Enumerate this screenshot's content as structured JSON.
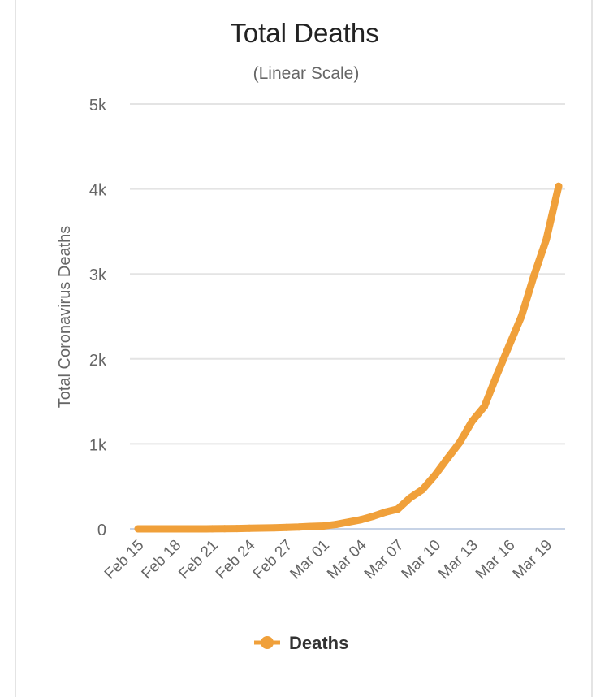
{
  "chart_data": {
    "type": "line",
    "title": "Total Deaths",
    "subtitle": "(Linear Scale)",
    "xlabel": "",
    "ylabel": "Total Coronavirus Deaths",
    "ylim": [
      0,
      5000
    ],
    "y_ticks": [
      0,
      1000,
      2000,
      3000,
      4000,
      5000
    ],
    "y_tick_labels": [
      "0",
      "1k",
      "2k",
      "3k",
      "4k",
      "5k"
    ],
    "x_tick_labels": [
      "Feb 15",
      "Feb 18",
      "Feb 21",
      "Feb 24",
      "Feb 27",
      "Mar 01",
      "Mar 04",
      "Mar 07",
      "Mar 10",
      "Mar 13",
      "Mar 16",
      "Mar 19"
    ],
    "x_tick_every": 3,
    "grid": true,
    "legend_position": "bottom",
    "series": [
      {
        "name": "Deaths",
        "color": "#f0a03a",
        "x": [
          "Feb 15",
          "Feb 16",
          "Feb 17",
          "Feb 18",
          "Feb 19",
          "Feb 20",
          "Feb 21",
          "Feb 22",
          "Feb 23",
          "Feb 24",
          "Feb 25",
          "Feb 26",
          "Feb 27",
          "Feb 28",
          "Feb 29",
          "Mar 01",
          "Mar 02",
          "Mar 03",
          "Mar 04",
          "Mar 05",
          "Mar 06",
          "Mar 07",
          "Mar 08",
          "Mar 09",
          "Mar 10",
          "Mar 11",
          "Mar 12",
          "Mar 13",
          "Mar 14",
          "Mar 15",
          "Mar 16",
          "Mar 17",
          "Mar 18",
          "Mar 19",
          "Mar 20"
        ],
        "values": [
          0,
          0,
          0,
          0,
          0,
          0,
          1,
          2,
          3,
          7,
          10,
          12,
          17,
          21,
          29,
          34,
          52,
          79,
          107,
          148,
          197,
          233,
          366,
          463,
          631,
          827,
          1016,
          1266,
          1441,
          1809,
          2158,
          2503,
          2978,
          3405,
          4032
        ]
      }
    ]
  }
}
